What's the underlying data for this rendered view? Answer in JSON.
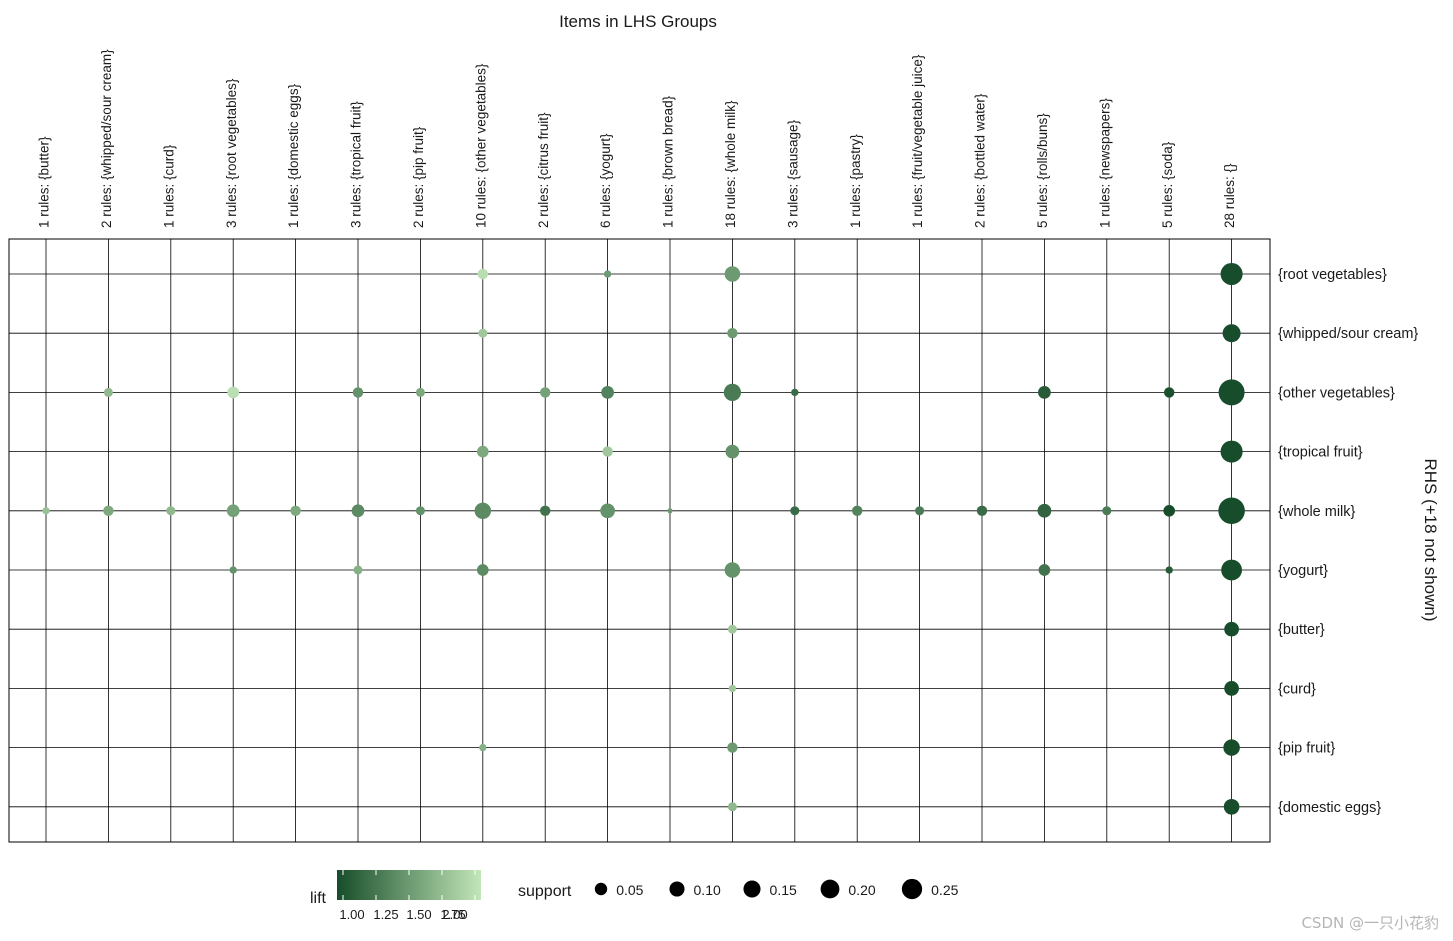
{
  "chart_data": {
    "type": "scatter",
    "title": "Items in LHS Groups",
    "right_axis_label": "RHS (+18 not shown)",
    "lhs_groups": [
      "1 rules: {butter}",
      "2 rules: {whipped/sour cream}",
      "1 rules: {curd}",
      "3 rules: {root vegetables}",
      "1 rules: {domestic eggs}",
      "3 rules: {tropical fruit}",
      "2 rules: {pip fruit}",
      "10 rules: {other vegetables}",
      "2 rules: {citrus fruit}",
      "6 rules: {yogurt}",
      "1 rules: {brown bread}",
      "18 rules: {whole milk}",
      "3 rules: {sausage}",
      "1 rules: {pastry}",
      "1 rules: {fruit/vegetable juice}",
      "2 rules: {bottled water}",
      "5 rules: {rolls/buns}",
      "1 rules: {newspapers}",
      "5 rules: {soda}",
      "28 rules: {}"
    ],
    "rhs_items": [
      "{root vegetables}",
      "{whipped/sour cream}",
      "{other vegetables}",
      "{tropical fruit}",
      "{whole milk}",
      "{yogurt}",
      "{butter}",
      "{curd}",
      "{pip fruit}",
      "{domestic eggs}"
    ],
    "points_fields": [
      "lhs_index",
      "rhs_index",
      "support",
      "lift"
    ],
    "points": [
      [
        7,
        0,
        0.04,
        1.95
      ],
      [
        9,
        0,
        0.02,
        1.5
      ],
      [
        11,
        0,
        0.09,
        1.5
      ],
      [
        19,
        0,
        0.18,
        1.0
      ],
      [
        7,
        1,
        0.03,
        1.8
      ],
      [
        11,
        1,
        0.04,
        1.5
      ],
      [
        19,
        1,
        0.12,
        1.0
      ],
      [
        1,
        2,
        0.03,
        1.7
      ],
      [
        3,
        2,
        0.05,
        1.95
      ],
      [
        5,
        2,
        0.04,
        1.45
      ],
      [
        6,
        2,
        0.03,
        1.6
      ],
      [
        8,
        2,
        0.04,
        1.55
      ],
      [
        9,
        2,
        0.06,
        1.35
      ],
      [
        11,
        2,
        0.11,
        1.3
      ],
      [
        12,
        2,
        0.02,
        1.2
      ],
      [
        16,
        2,
        0.06,
        1.1
      ],
      [
        18,
        2,
        0.04,
        1.02
      ],
      [
        19,
        2,
        0.25,
        1.0
      ],
      [
        7,
        3,
        0.05,
        1.6
      ],
      [
        9,
        3,
        0.04,
        1.8
      ],
      [
        11,
        3,
        0.07,
        1.45
      ],
      [
        19,
        3,
        0.18,
        1.0
      ],
      [
        0,
        4,
        0.02,
        1.75
      ],
      [
        1,
        4,
        0.04,
        1.6
      ],
      [
        2,
        4,
        0.03,
        1.7
      ],
      [
        3,
        4,
        0.06,
        1.55
      ],
      [
        4,
        4,
        0.04,
        1.6
      ],
      [
        5,
        4,
        0.06,
        1.4
      ],
      [
        6,
        4,
        0.03,
        1.45
      ],
      [
        7,
        4,
        0.1,
        1.4
      ],
      [
        8,
        4,
        0.04,
        1.25
      ],
      [
        9,
        4,
        0.08,
        1.45
      ],
      [
        10,
        4,
        0.01,
        1.5
      ],
      [
        12,
        4,
        0.03,
        1.2
      ],
      [
        13,
        4,
        0.04,
        1.35
      ],
      [
        14,
        4,
        0.03,
        1.3
      ],
      [
        15,
        4,
        0.04,
        1.2
      ],
      [
        16,
        4,
        0.07,
        1.15
      ],
      [
        17,
        4,
        0.03,
        1.3
      ],
      [
        18,
        4,
        0.05,
        1.0
      ],
      [
        19,
        4,
        0.26,
        1.0
      ],
      [
        3,
        5,
        0.02,
        1.45
      ],
      [
        5,
        5,
        0.03,
        1.65
      ],
      [
        7,
        5,
        0.05,
        1.4
      ],
      [
        11,
        5,
        0.09,
        1.45
      ],
      [
        16,
        5,
        0.05,
        1.25
      ],
      [
        18,
        5,
        0.02,
        1.1
      ],
      [
        19,
        5,
        0.16,
        1.0
      ],
      [
        11,
        6,
        0.03,
        1.8
      ],
      [
        19,
        6,
        0.08,
        1.0
      ],
      [
        11,
        7,
        0.02,
        1.8
      ],
      [
        19,
        7,
        0.08,
        1.0
      ],
      [
        7,
        8,
        0.02,
        1.65
      ],
      [
        11,
        8,
        0.04,
        1.5
      ],
      [
        19,
        8,
        0.1,
        1.0
      ],
      [
        11,
        9,
        0.03,
        1.7
      ],
      [
        19,
        9,
        0.09,
        1.0
      ]
    ],
    "lift_legend": {
      "title": "lift",
      "range": [
        1.0,
        2.0
      ],
      "ticks": [
        "1.00",
        "1.25",
        "1.50",
        "1.75",
        "2.00"
      ],
      "color_low": "#174d2a",
      "color_high": "#c2e6b8"
    },
    "support_legend": {
      "title": "support",
      "values": [
        0.05,
        0.1,
        0.15,
        0.2,
        0.25
      ],
      "labels": [
        "0.05",
        "0.10",
        "0.15",
        "0.20",
        "0.25"
      ],
      "color": "#000000"
    }
  },
  "watermark": "CSDN @一只小花豹"
}
